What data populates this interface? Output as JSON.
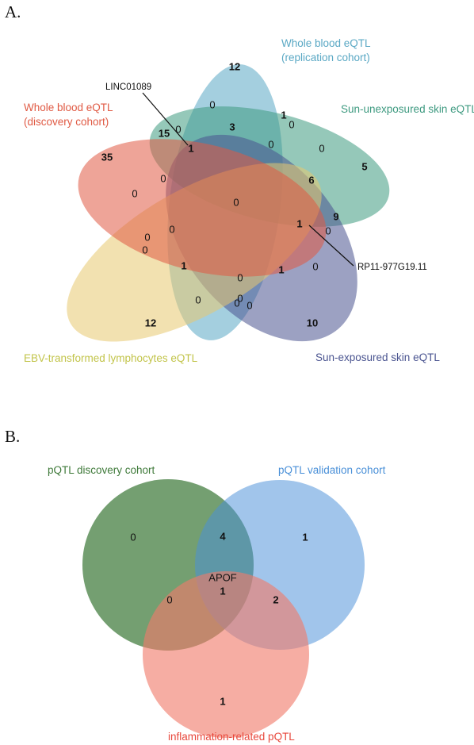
{
  "panels": {
    "a": {
      "label": "A.",
      "sets": [
        {
          "name": "Whole blood eQTL",
          "name2": "(replication cohort)",
          "color": "#5aa8c4"
        },
        {
          "name": "Sun-unexposured skin eQTL",
          "color": "#3e9a80"
        },
        {
          "name": "Sun-exposured skin eQTL",
          "color": "#4a5490"
        },
        {
          "name": "EBV-transformed lymphocytes eQTL",
          "color": "#c2c44a"
        },
        {
          "name": "Whole blood eQTL",
          "name2": "(discovery cohort)",
          "color": "#e05a44"
        }
      ],
      "counts": [
        "12",
        "0",
        "1",
        "3",
        "15",
        "0",
        "1",
        "0",
        "0",
        "0",
        "6",
        "0",
        "5",
        "35",
        "0",
        "0",
        "0",
        "9",
        "1",
        "0",
        "0",
        "0",
        "0",
        "1",
        "0",
        "1",
        "0",
        "0",
        "0",
        "0",
        "12",
        "10"
      ],
      "callouts": {
        "top": "LINC01089",
        "right": "RP11-977G19.11"
      }
    },
    "b": {
      "label": "B.",
      "sets": [
        {
          "name": "pQTL discovery cohort",
          "color": "#3f7a3a"
        },
        {
          "name": "pQTL validation cohort",
          "color": "#4a90d8"
        },
        {
          "name": "inflammation-related pQTL",
          "color": "#e8483c"
        }
      ],
      "counts": [
        "0",
        "4",
        "1",
        "1",
        "0",
        "2",
        "1"
      ],
      "center_gene": "APOF"
    }
  }
}
